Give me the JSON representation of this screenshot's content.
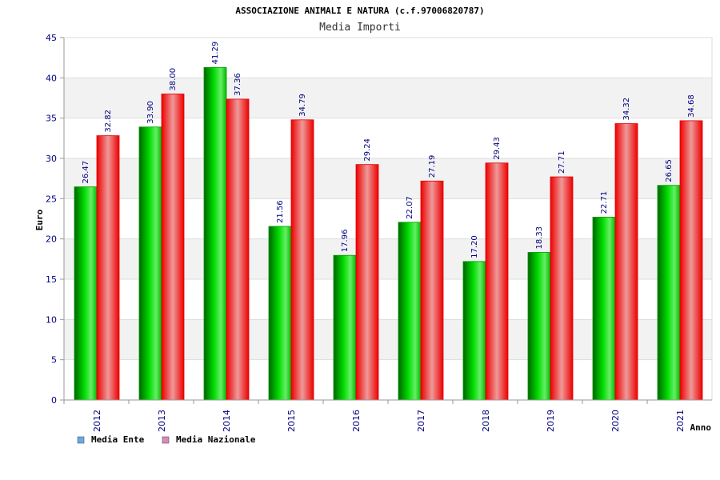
{
  "chart_data": {
    "type": "bar",
    "title": "ASSOCIAZIONE ANIMALI E NATURA (c.f.97006820787)",
    "subtitle": "Media Importi",
    "xlabel": "Anno",
    "ylabel": "Euro",
    "ylim": [
      0,
      45
    ],
    "yticks": [
      "0",
      "5",
      "10",
      "15",
      "20",
      "25",
      "30",
      "35",
      "40",
      "45"
    ],
    "grid": true,
    "legend_position": "bottom-left",
    "categories": [
      "2012",
      "2013",
      "2014",
      "2015",
      "2016",
      "2017",
      "2018",
      "2019",
      "2020",
      "2021"
    ],
    "series": [
      {
        "name": "Media Ente",
        "color": "#00cc00",
        "legend_color": "#66aaee",
        "values": [
          26.47,
          33.9,
          41.29,
          21.56,
          17.96,
          22.07,
          17.2,
          18.33,
          22.71,
          26.65
        ],
        "labels": [
          "26.47",
          "33.90",
          "41.29",
          "21.56",
          "17.96",
          "22.07",
          "17.20",
          "18.33",
          "22.71",
          "26.65"
        ]
      },
      {
        "name": "Media Nazionale",
        "color": "#ee1111",
        "legend_color": "#dd88bb",
        "values": [
          32.82,
          38.0,
          37.36,
          34.79,
          29.24,
          27.19,
          29.43,
          27.71,
          34.32,
          34.68
        ],
        "labels": [
          "32.82",
          "38.00",
          "37.36",
          "34.79",
          "29.24",
          "27.19",
          "29.43",
          "27.71",
          "34.32",
          "34.68"
        ]
      }
    ]
  }
}
